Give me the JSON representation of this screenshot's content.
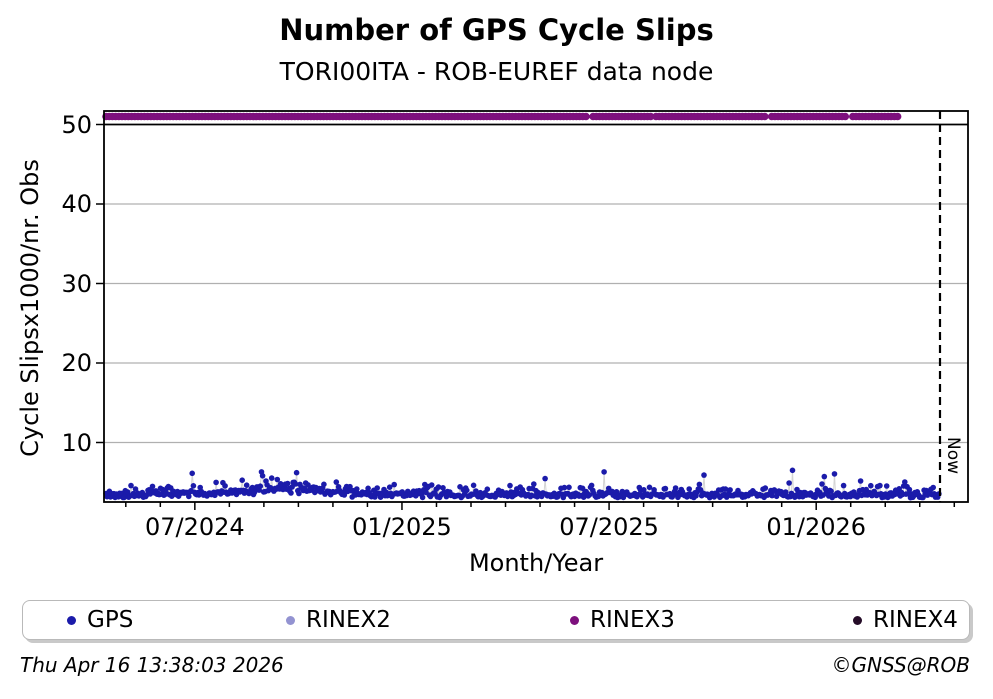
{
  "figure": {
    "title": "Number of GPS Cycle Slips",
    "subtitle": "TORI00ITA - ROB-EUREF data node",
    "footer_left": "Thu Apr 16 13:38:03 2026",
    "footer_right": "©GNSS@ROB"
  },
  "axes": {
    "ylabel": "Cycle Slipsx1000/nr. Obs",
    "xlabel": "Month/Year",
    "now_label": "Now"
  },
  "colors": {
    "grid": "#b0b0b0",
    "axis": "#000000",
    "background": "#ffffff",
    "spike_connector": "#d4d4d4"
  },
  "legend": {
    "items": [
      {
        "label": "GPS",
        "color": "#1b1baa"
      },
      {
        "label": "RINEX2",
        "color": "#9393d1"
      },
      {
        "label": "RINEX3",
        "color": "#7d107d"
      },
      {
        "label": "RINEX4",
        "color": "#250c28"
      }
    ]
  },
  "chart_data": {
    "type": "scatter",
    "title": "Number of GPS Cycle Slips",
    "subtitle": "TORI00ITA - ROB-EUREF data node",
    "xlabel": "Month/Year",
    "ylabel": "Cycle Slipsx1000/nr. Obs",
    "ylim": [
      2.4,
      51.9
    ],
    "yticks": [
      10,
      20,
      30,
      40,
      50
    ],
    "grid": "horizontal-gray",
    "hline_y": 50,
    "x_axis": {
      "start_month": "2024-05",
      "months_total": 25,
      "major_ticks": [
        {
          "label": "07/2024",
          "month_offset": 2
        },
        {
          "label": "01/2025",
          "month_offset": 8
        },
        {
          "label": "07/2025",
          "month_offset": 14
        },
        {
          "label": "01/2026",
          "month_offset": 20
        }
      ]
    },
    "now_line": {
      "label": "Now",
      "date": "2026-04-16",
      "style": "dashed-black"
    },
    "series": [
      {
        "name": "GPS",
        "color": "#1b1baa",
        "kind": "daily-scatter",
        "typical_value_range": [
          3.0,
          4.8
        ],
        "gen": {
          "seed": 20260416,
          "days": 735,
          "base": 3.05,
          "jitter1": 0.55,
          "jitter2": 1.2,
          "bump_day": 150,
          "bump_width": 55,
          "bump_amp": 1.1,
          "spike_prob": 0.01
        },
        "notable_spikes": [
          {
            "t": 0.187,
            "v": 6.3
          },
          {
            "t": 0.229,
            "v": 6.2
          },
          {
            "t": 0.597,
            "v": 6.3
          },
          {
            "t": 0.717,
            "v": 5.9
          },
          {
            "t": 0.874,
            "v": 6.05
          }
        ]
      },
      {
        "name": "RINEX2",
        "color": "#9393d1",
        "kind": "marker-row",
        "value": null,
        "segments": []
      },
      {
        "name": "RINEX3",
        "color": "#7d107d",
        "kind": "marker-row",
        "value": 51,
        "segments": [
          [
            0.0,
            0.583
          ],
          [
            0.589,
            0.66
          ],
          [
            0.665,
            0.8
          ],
          [
            0.805,
            0.897
          ],
          [
            0.903,
            0.959
          ]
        ]
      },
      {
        "name": "RINEX4",
        "color": "#250c28",
        "kind": "marker-row",
        "value": null,
        "segments": []
      }
    ]
  }
}
